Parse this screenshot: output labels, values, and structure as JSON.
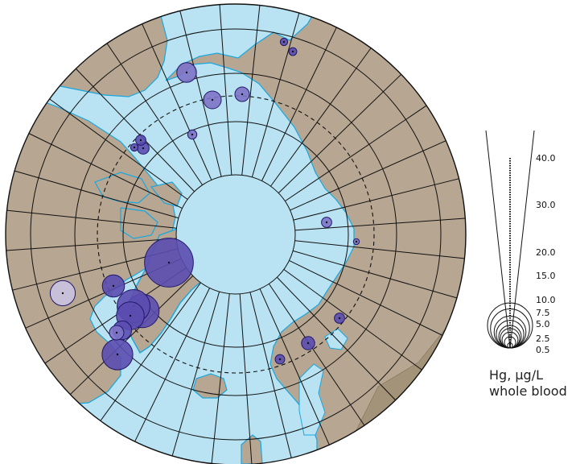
{
  "colors": {
    "ocean": "#b9e3f2",
    "land": "#b7a691",
    "land_dark": "#a39379",
    "coast": "#19a7e0",
    "grid": "#111111",
    "circle_fill": "#5b4db0",
    "circle_fill_light": "#7d73c6",
    "circle_fill_pale": "#c9c3e0",
    "circle_stroke": "#22186a"
  },
  "legend": {
    "unit_label": "Hg, µg/L",
    "medium_label": "whole blood",
    "ticks": [
      {
        "label": "40.0",
        "value": 40.0
      },
      {
        "label": "30.0",
        "value": 30.0
      },
      {
        "label": "20.0",
        "value": 20.0
      },
      {
        "label": "15.0",
        "value": 15.0
      },
      {
        "label": "10.0",
        "value": 10.0
      },
      {
        "label": "7.5",
        "value": 7.5
      },
      {
        "label": "5.0",
        "value": 5.0
      },
      {
        "label": "2.5",
        "value": 2.5
      },
      {
        "label": "0.5",
        "value": 0.5
      }
    ]
  },
  "sites": [
    {
      "name": "site-nw-greenland",
      "value": 34.0,
      "tone": "dark"
    },
    {
      "name": "site-w-greenland-1",
      "value": 16.0,
      "tone": "dark"
    },
    {
      "name": "site-w-greenland-2",
      "value": 15.5,
      "tone": "dark"
    },
    {
      "name": "site-w-greenland-3",
      "value": 11.0,
      "tone": "dark"
    },
    {
      "name": "site-s-greenland",
      "value": 13.5,
      "tone": "dark"
    },
    {
      "name": "site-sw-greenland",
      "value": 5.0,
      "tone": "dark"
    },
    {
      "name": "site-sw-greenland-2",
      "value": 3.0,
      "tone": "light"
    },
    {
      "name": "site-nunavik",
      "value": 7.0,
      "tone": "dark"
    },
    {
      "name": "site-labrador",
      "value": 9.0,
      "tone": "pale"
    },
    {
      "name": "site-beaufort-1",
      "value": 2.0,
      "tone": "dark"
    },
    {
      "name": "site-beaufort-2",
      "value": 1.5,
      "tone": "dark"
    },
    {
      "name": "site-beaufort-3",
      "value": 0.8,
      "tone": "dark"
    },
    {
      "name": "site-yukon",
      "value": 1.2,
      "tone": "light"
    },
    {
      "name": "site-alaska-w",
      "value": 5.5,
      "tone": "light"
    },
    {
      "name": "site-chukotka-1",
      "value": 4.5,
      "tone": "light"
    },
    {
      "name": "site-chukotka-2",
      "value": 3.0,
      "tone": "light"
    },
    {
      "name": "site-chukotka-3",
      "value": 0.8,
      "tone": "dark"
    },
    {
      "name": "site-chukotka-4",
      "value": 0.9,
      "tone": "dark"
    },
    {
      "name": "site-siberia",
      "value": 1.5,
      "tone": "light"
    },
    {
      "name": "site-siberia-2",
      "value": 0.5,
      "tone": "light"
    },
    {
      "name": "site-kola",
      "value": 1.5,
      "tone": "dark"
    },
    {
      "name": "site-finland",
      "value": 2.5,
      "tone": "dark"
    },
    {
      "name": "site-norway",
      "value": 1.3,
      "tone": "dark"
    }
  ]
}
